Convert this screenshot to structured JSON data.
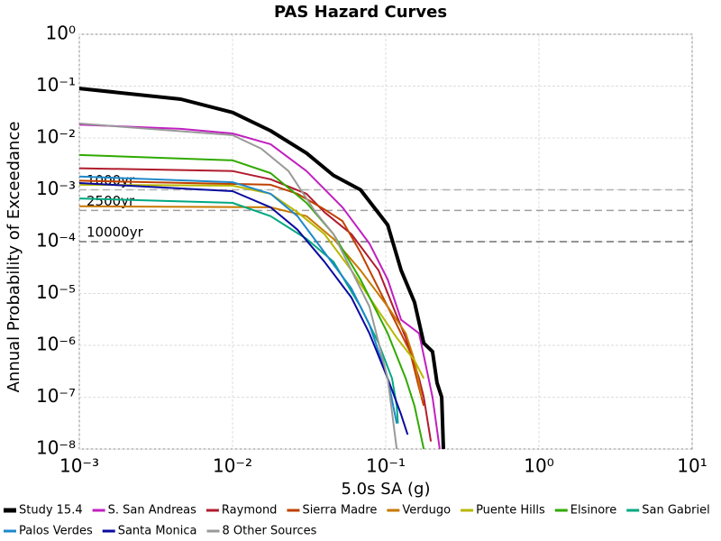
{
  "chart_data": {
    "type": "line",
    "title": "PAS Hazard Curves",
    "x_label": "5.0s SA (g)",
    "y_label": "Annual Probability of Exceedance",
    "x_scale": "log",
    "y_scale": "log",
    "grid": true,
    "legend": "bottom",
    "xlim": [
      0.001,
      10
    ],
    "ylim": [
      1e-08,
      1
    ],
    "xticks": [
      {
        "value": 0.001,
        "label": "10⁻³"
      },
      {
        "value": 0.01,
        "label": "10⁻²"
      },
      {
        "value": 0.1,
        "label": "10⁻¹"
      },
      {
        "value": 1,
        "label": "10⁰"
      },
      {
        "value": 10,
        "label": "10¹"
      }
    ],
    "yticks": [
      {
        "value": 1,
        "label": "10⁰"
      },
      {
        "value": 0.1,
        "label": "10⁻¹"
      },
      {
        "value": 0.01,
        "label": "10⁻²"
      },
      {
        "value": 0.001,
        "label": "10⁻³"
      },
      {
        "value": 0.0001,
        "label": "10⁻⁴"
      },
      {
        "value": 1e-05,
        "label": "10⁻⁵"
      },
      {
        "value": 1e-06,
        "label": "10⁻⁶"
      },
      {
        "value": 1e-07,
        "label": "10⁻⁷"
      },
      {
        "value": 1e-08,
        "label": "10⁻⁸"
      }
    ],
    "annotations": [
      {
        "text": "1000yr",
        "y": 0.001,
        "color": "#b0b0b0"
      },
      {
        "text": "2500yr",
        "y": 0.0004,
        "color": "#a0a0a0"
      },
      {
        "text": "10000yr",
        "y": 0.0001,
        "color": "#707070"
      }
    ],
    "series": [
      {
        "name": "Study 15.4",
        "color": "#000000",
        "width": 4,
        "x": [
          0.001,
          0.0046,
          0.01,
          0.0177,
          0.0304,
          0.0456,
          0.0684,
          0.103,
          0.126,
          0.154,
          0.177,
          0.202,
          0.216,
          0.232,
          0.238
        ],
        "values": [
          0.09,
          0.056,
          0.031,
          0.0138,
          0.0051,
          0.0019,
          0.001,
          0.00021,
          2.8e-05,
          6.8e-06,
          1.1e-06,
          7.6e-07,
          1.9e-07,
          1e-07,
          1e-08
        ]
      },
      {
        "name": "S. San Andreas",
        "color": "#c020c0",
        "width": 2,
        "x": [
          0.001,
          0.0046,
          0.01,
          0.0177,
          0.0304,
          0.0522,
          0.0783,
          0.103,
          0.126,
          0.165,
          0.202,
          0.225
        ],
        "values": [
          0.018,
          0.015,
          0.0122,
          0.0076,
          0.0023,
          0.00046,
          9.2e-05,
          1.86e-05,
          3.1e-06,
          1.7e-06,
          1e-07,
          1e-08
        ]
      },
      {
        "name": "Raymond",
        "color": "#b01c2e",
        "width": 2,
        "x": [
          0.001,
          0.01,
          0.0177,
          0.0304,
          0.0398,
          0.0597,
          0.0897,
          0.118,
          0.135,
          0.165,
          0.177,
          0.197
        ],
        "values": [
          0.0026,
          0.0023,
          0.0016,
          0.00084,
          0.00037,
          0.00014,
          2.8e-05,
          3.7e-06,
          1.4e-06,
          2.3e-07,
          1e-07,
          1.4e-08
        ]
      },
      {
        "name": "Sierra Madre",
        "color": "#c04000",
        "width": 2,
        "x": [
          0.001,
          0.0177,
          0.0265,
          0.0398,
          0.0522,
          0.0684,
          0.0897,
          0.118,
          0.144,
          0.165,
          0.177
        ],
        "values": [
          0.0015,
          0.00125,
          0.00084,
          0.00042,
          0.00025,
          6.2e-05,
          1.25e-05,
          2.5e-06,
          7.6e-07,
          1.5e-07,
          6.8e-08
        ]
      },
      {
        "name": "Verdugo",
        "color": "#c87800",
        "width": 2,
        "x": [
          0.001,
          0.0177,
          0.0304,
          0.0456,
          0.0684,
          0.103,
          0.135,
          0.154,
          0.172
        ],
        "values": [
          0.00048,
          0.00046,
          0.00031,
          0.000113,
          2.8e-05,
          5.6e-06,
          1.7e-06,
          5.1e-07,
          1e-07
        ]
      },
      {
        "name": "Puente Hills",
        "color": "#b8b800",
        "width": 2,
        "x": [
          0.001,
          0.01,
          0.0177,
          0.0265,
          0.0398,
          0.0597,
          0.0897,
          0.118,
          0.154,
          0.177
        ],
        "values": [
          0.00125,
          0.0012,
          0.00084,
          0.00037,
          0.00014,
          2.8e-05,
          4.6e-06,
          1.4e-06,
          5.1e-07,
          2.3e-07
        ]
      },
      {
        "name": "Elsinore",
        "color": "#30aa00",
        "width": 2,
        "x": [
          0.001,
          0.01,
          0.0177,
          0.0304,
          0.0456,
          0.0684,
          0.103,
          0.135,
          0.154,
          0.177
        ],
        "values": [
          0.0047,
          0.0037,
          0.0021,
          0.00056,
          0.00014,
          1.86e-05,
          1.7e-06,
          2.3e-07,
          6.8e-08,
          1e-08
        ]
      },
      {
        "name": "San Gabriel",
        "color": "#00a880",
        "width": 2,
        "x": [
          0.001,
          0.01,
          0.0177,
          0.0304,
          0.0456,
          0.0684,
          0.0897,
          0.11,
          0.118,
          0.12
        ],
        "values": [
          0.00068,
          0.00056,
          0.00031,
          0.000113,
          4.1e-05,
          5.6e-06,
          1.1e-06,
          2.3e-07,
          6.8e-08,
          3.1e-08
        ]
      },
      {
        "name": "Palos Verdes",
        "color": "#1e88c8",
        "width": 2,
        "x": [
          0.001,
          0.01,
          0.0177,
          0.0265,
          0.0398,
          0.0597,
          0.0783,
          0.103,
          0.118
        ],
        "values": [
          0.0018,
          0.0014,
          0.00084,
          0.00031,
          6.2e-05,
          1.25e-05,
          2.5e-06,
          2.3e-07,
          3.1e-08
        ]
      },
      {
        "name": "Santa Monica",
        "color": "#0a0aa0",
        "width": 2,
        "x": [
          0.001,
          0.01,
          0.0177,
          0.0265,
          0.0398,
          0.0597,
          0.0783,
          0.103,
          0.126,
          0.139
        ],
        "values": [
          0.00135,
          0.00094,
          0.00046,
          0.00017,
          4.1e-05,
          8.4e-06,
          1.7e-06,
          2.3e-07,
          4.6e-08,
          1.9e-08
        ]
      },
      {
        "name": "8 Other Sources",
        "color": "#999999",
        "width": 2,
        "x": [
          0.001,
          0.01,
          0.0154,
          0.0232,
          0.0348,
          0.0456,
          0.0597,
          0.0783,
          0.103,
          0.118
        ],
        "values": [
          0.019,
          0.0113,
          0.0062,
          0.0023,
          0.00037,
          0.00014,
          2.8e-05,
          5.6e-06,
          2.3e-07,
          1e-08
        ]
      }
    ]
  }
}
